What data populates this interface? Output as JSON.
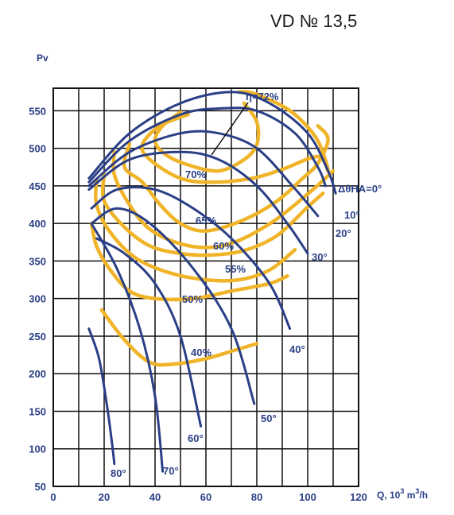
{
  "chart_data": {
    "type": "line",
    "title": "VD № 13,5",
    "ylabel": "Pv",
    "xlabel": "Q, 10³ m³/h",
    "xlabel_parts": {
      "base": "Q, 10",
      "exp1": "3",
      "mid": " m",
      "exp2": "3",
      "tail": "/h"
    },
    "xlim": [
      0,
      120
    ],
    "ylim": [
      50,
      580
    ],
    "x_ticks": [
      "0",
      "20",
      "40",
      "60",
      "80",
      "100",
      "120"
    ],
    "x_tick_values": [
      0,
      20,
      40,
      60,
      80,
      100,
      120
    ],
    "y_ticks": [
      "50",
      "100",
      "150",
      "200",
      "250",
      "300",
      "350",
      "400",
      "450",
      "500",
      "550"
    ],
    "y_tick_values": [
      50,
      100,
      150,
      200,
      250,
      300,
      350,
      400,
      450,
      500,
      550
    ],
    "grid": true,
    "colors": {
      "curves": "#2a3f86",
      "efficiency": "#f0b429",
      "grid": "#111111"
    },
    "pressure_curves": [
      {
        "name": "ΔθHA=0°",
        "points": [
          [
            14,
            460
          ],
          [
            30,
            520
          ],
          [
            50,
            560
          ],
          [
            70,
            575
          ],
          [
            85,
            560
          ],
          [
            100,
            520
          ],
          [
            108,
            470
          ],
          [
            111,
            440
          ]
        ]
      },
      {
        "name": "10°",
        "points": [
          [
            14,
            455
          ],
          [
            30,
            510
          ],
          [
            50,
            545
          ],
          [
            65,
            553
          ],
          [
            80,
            550
          ],
          [
            95,
            520
          ],
          [
            104,
            475
          ],
          [
            107,
            450
          ]
        ]
      },
      {
        "name": "20°",
        "points": [
          [
            14,
            450
          ],
          [
            30,
            495
          ],
          [
            50,
            520
          ],
          [
            65,
            520
          ],
          [
            80,
            500
          ],
          [
            94,
            450
          ],
          [
            104,
            410
          ]
        ]
      },
      {
        "name": "30°",
        "points": [
          [
            14,
            445
          ],
          [
            30,
            485
          ],
          [
            50,
            495
          ],
          [
            65,
            485
          ],
          [
            80,
            450
          ],
          [
            92,
            400
          ],
          [
            100,
            360
          ]
        ]
      },
      {
        "name": "40°",
        "points": [
          [
            15,
            420
          ],
          [
            25,
            445
          ],
          [
            40,
            445
          ],
          [
            55,
            420
          ],
          [
            70,
            380
          ],
          [
            85,
            320
          ],
          [
            93,
            260
          ]
        ]
      },
      {
        "name": "50°",
        "points": [
          [
            15,
            400
          ],
          [
            25,
            420
          ],
          [
            38,
            400
          ],
          [
            55,
            340
          ],
          [
            70,
            260
          ],
          [
            79,
            160
          ]
        ]
      },
      {
        "name": "60°",
        "points": [
          [
            17,
            380
          ],
          [
            28,
            360
          ],
          [
            40,
            320
          ],
          [
            50,
            250
          ],
          [
            58,
            130
          ]
        ]
      },
      {
        "name": "70°",
        "points": [
          [
            15,
            400
          ],
          [
            25,
            340
          ],
          [
            34,
            260
          ],
          [
            40,
            170
          ],
          [
            43,
            70
          ]
        ]
      },
      {
        "name": "80°",
        "points": [
          [
            14,
            260
          ],
          [
            18,
            220
          ],
          [
            21,
            160
          ],
          [
            23,
            110
          ],
          [
            24,
            80
          ]
        ]
      }
    ],
    "efficiency_contours": [
      {
        "name": "η=72%",
        "closed": false,
        "points": [
          [
            75,
            560
          ],
          [
            80,
            535
          ],
          [
            80,
            505
          ],
          [
            75,
            485
          ],
          [
            65,
            470
          ],
          [
            53,
            478
          ],
          [
            44,
            492
          ],
          [
            40,
            510
          ],
          [
            43,
            530
          ],
          [
            50,
            548
          ]
        ]
      },
      {
        "name": "70%",
        "closed": false,
        "points": [
          [
            53,
            545
          ],
          [
            42,
            530
          ],
          [
            35,
            505
          ],
          [
            38,
            485
          ],
          [
            50,
            460
          ],
          [
            63,
            455
          ],
          [
            78,
            460
          ],
          [
            90,
            472
          ],
          [
            104,
            489
          ],
          [
            108,
            470
          ],
          [
            104,
            510
          ],
          [
            96,
            542
          ],
          [
            88,
            560
          ],
          [
            78,
            574
          ],
          [
            73,
            575
          ]
        ]
      },
      {
        "name": "65%",
        "points": [
          [
            30,
            506
          ],
          [
            28,
            475
          ],
          [
            35,
            455
          ],
          [
            42,
            425
          ],
          [
            50,
            400
          ],
          [
            60,
            390
          ],
          [
            75,
            405
          ],
          [
            88,
            430
          ],
          [
            98,
            460
          ],
          [
            104,
            480
          ],
          [
            108,
            512
          ],
          [
            104,
            530
          ]
        ]
      },
      {
        "name": "60%",
        "points": [
          [
            24,
            495
          ],
          [
            24,
            465
          ],
          [
            29,
            430
          ],
          [
            37,
            395
          ],
          [
            48,
            375
          ],
          [
            60,
            368
          ],
          [
            72,
            376
          ],
          [
            87,
            404
          ],
          [
            102,
            445
          ],
          [
            110,
            470
          ]
        ]
      },
      {
        "name": "55%",
        "points": [
          [
            20,
            465
          ],
          [
            20,
            430
          ],
          [
            28,
            395
          ],
          [
            38,
            370
          ],
          [
            50,
            360
          ],
          [
            62,
            358
          ],
          [
            75,
            364
          ],
          [
            88,
            384
          ],
          [
            100,
            422
          ],
          [
            106,
            440
          ]
        ]
      },
      {
        "name": "50%",
        "points": [
          [
            17,
            458
          ],
          [
            17,
            425
          ],
          [
            22,
            390
          ],
          [
            32,
            355
          ],
          [
            45,
            335
          ],
          [
            60,
            325
          ],
          [
            73,
            325
          ],
          [
            85,
            338
          ],
          [
            95,
            365
          ]
        ]
      },
      {
        "name": "40%",
        "points": [
          [
            15,
            400
          ],
          [
            17,
            370
          ],
          [
            22,
            340
          ],
          [
            30,
            310
          ],
          [
            40,
            300
          ],
          [
            55,
            300
          ],
          [
            70,
            310
          ],
          [
            85,
            320
          ],
          [
            92,
            330
          ]
        ]
      },
      {
        "name": "40%-low",
        "points": [
          [
            19,
            285
          ],
          [
            28,
            245
          ],
          [
            38,
            215
          ],
          [
            48,
            213
          ],
          [
            60,
            220
          ],
          [
            72,
            232
          ],
          [
            80,
            240
          ]
        ]
      }
    ],
    "annotations": {
      "eta_label": "η=72%",
      "angle_labels": [
        "ΔθHA=0°",
        "10°",
        "20°",
        "30°",
        "40°",
        "50°",
        "60°",
        "70°",
        "80°"
      ],
      "efficiency_labels": [
        "70%",
        "65%",
        "60%",
        "55%",
        "50%",
        "40%"
      ]
    }
  }
}
